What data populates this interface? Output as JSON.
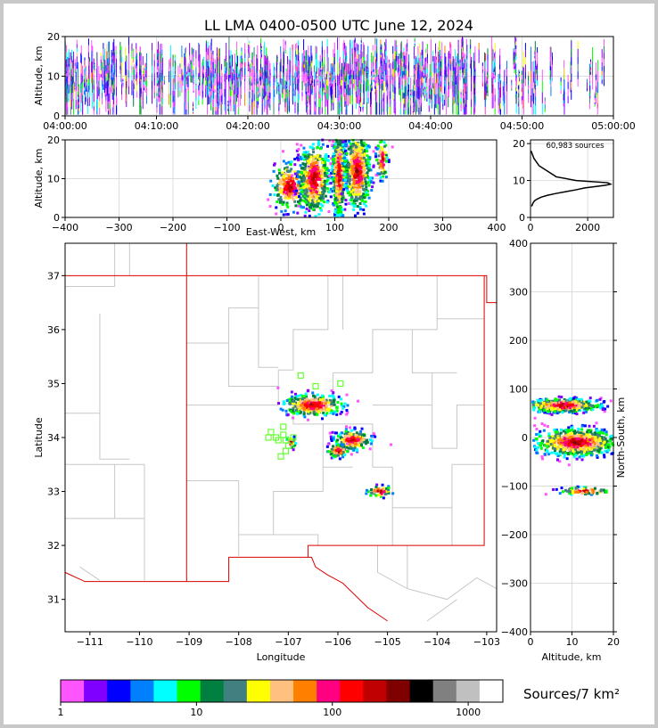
{
  "title": "LL LMA 0400-0500 UTC June 12, 2024",
  "colors": {
    "colorbar": [
      "#ff55ff",
      "#8000ff",
      "#0000ff",
      "#0080ff",
      "#00ffff",
      "#00ff00",
      "#008040",
      "#408080",
      "#ffff00",
      "#ffc080",
      "#ff8000",
      "#ff0080",
      "#ff0000",
      "#c00000",
      "#800000",
      "#000000",
      "#808080",
      "#c0c0c0",
      "#ffffff"
    ],
    "map_state_lines": "#dd0000",
    "map_county_lines": "#c8c8c8",
    "station_marker": "#66ff33",
    "grid": "#dddddd"
  },
  "chart_data": [
    {
      "type": "scatter",
      "name": "altitude-vs-time",
      "xlabel": "",
      "ylabel": "Altitude, km",
      "xlim": [
        "04:00:00",
        "05:00:00"
      ],
      "ylim": [
        0,
        20
      ],
      "xticks": [
        "04:00:00",
        "04:10:00",
        "04:20:00",
        "04:30:00",
        "04:40:00",
        "04:50:00",
        "05:00:00"
      ],
      "yticks": [
        0,
        10,
        20
      ],
      "activity_clusters_minutes": [
        {
          "start": 0,
          "end": 6,
          "density": 0.9
        },
        {
          "start": 6,
          "end": 14,
          "density": 0.6
        },
        {
          "start": 14,
          "end": 26,
          "density": 0.85
        },
        {
          "start": 26,
          "end": 44,
          "density": 1.0
        },
        {
          "start": 44,
          "end": 53,
          "density": 0.45
        },
        {
          "start": 53,
          "end": 59,
          "density": 0.25
        }
      ],
      "altitude_center_km": 9,
      "altitude_spread_km": 4
    },
    {
      "type": "heatmap",
      "name": "altitude-vs-east-west",
      "xlabel": "East-West, km",
      "ylabel": "Altitude, km",
      "xlim": [
        -400,
        400
      ],
      "ylim": [
        0,
        20
      ],
      "xticks": [
        -400,
        -300,
        -200,
        -100,
        0,
        100,
        200,
        300,
        400
      ],
      "yticks": [
        0,
        10,
        20
      ],
      "blobs": [
        {
          "x": 18,
          "xspread": 18,
          "alt": 8,
          "altspread": 3,
          "count": 260
        },
        {
          "x": 62,
          "xspread": 14,
          "alt": 10,
          "altspread": 4.5,
          "count": 520
        },
        {
          "x": 108,
          "xspread": 6,
          "alt": 11,
          "altspread": 5.5,
          "count": 480
        },
        {
          "x": 142,
          "xspread": 12,
          "alt": 12,
          "altspread": 5,
          "count": 560
        },
        {
          "x": 188,
          "xspread": 5,
          "alt": 15,
          "altspread": 2.5,
          "count": 90
        }
      ]
    },
    {
      "type": "line",
      "name": "altitude-histogram",
      "annotation": "60,983 sources",
      "xlim": [
        0,
        2900
      ],
      "ylim": [
        0,
        21
      ],
      "xticks": [
        0,
        2000
      ],
      "yticks": [
        0,
        10,
        20
      ],
      "x": [
        40,
        80,
        140,
        240,
        380,
        600,
        900,
        1250,
        1600,
        1900,
        2300,
        2600,
        2800,
        2700,
        1600,
        900,
        700,
        500,
        300,
        120,
        20
      ],
      "y": [
        3,
        3.8,
        4.5,
        5,
        5.5,
        6,
        6.5,
        7,
        7.5,
        8,
        8.4,
        8.7,
        9,
        9.4,
        10,
        11,
        12,
        13,
        14,
        16,
        18
      ]
    },
    {
      "type": "heatmap",
      "name": "plan-view-map",
      "xlabel": "Longitude",
      "ylabel": "Latitude",
      "xlim": [
        -111.5,
        -102.8
      ],
      "ylim": [
        30.4,
        37.6
      ],
      "xticks": [
        -111,
        -110,
        -109,
        -108,
        -107,
        -106,
        -105,
        -104,
        -103
      ],
      "yticks": [
        31,
        32,
        33,
        34,
        35,
        36,
        37
      ],
      "blobs": [
        {
          "lon": -106.5,
          "lat": 34.6,
          "lonspread": 0.3,
          "latspread": 0.1,
          "count": 320
        },
        {
          "lon": -105.7,
          "lat": 33.95,
          "lonspread": 0.18,
          "latspread": 0.09,
          "count": 230
        },
        {
          "lon": -106.0,
          "lat": 33.75,
          "lonspread": 0.1,
          "latspread": 0.06,
          "count": 90
        },
        {
          "lon": -106.95,
          "lat": 33.9,
          "lonspread": 0.05,
          "latspread": 0.06,
          "count": 30
        },
        {
          "lon": -105.15,
          "lat": 33.0,
          "lonspread": 0.13,
          "latspread": 0.05,
          "count": 50
        }
      ],
      "stations": [
        [
          -106.75,
          35.15
        ],
        [
          -106.45,
          34.95
        ],
        [
          -105.95,
          35.0
        ],
        [
          -107.35,
          34.1
        ],
        [
          -107.1,
          34.2
        ],
        [
          -107.1,
          34.05
        ],
        [
          -107.05,
          33.95
        ],
        [
          -107.0,
          33.85
        ],
        [
          -107.2,
          33.95
        ],
        [
          -107.4,
          34.0
        ],
        [
          -107.25,
          34.0
        ],
        [
          -106.9,
          34.0
        ],
        [
          -107.05,
          33.75
        ],
        [
          -107.15,
          33.65
        ]
      ]
    },
    {
      "type": "heatmap",
      "name": "north-south-vs-altitude",
      "xlabel": "Altitude, km",
      "ylabel": "North-South, km",
      "xlim": [
        0,
        20
      ],
      "ylim": [
        -400,
        400
      ],
      "xticks": [
        0,
        10,
        20
      ],
      "yticks": [
        -400,
        -300,
        -200,
        -100,
        0,
        100,
        200,
        300,
        400
      ],
      "blobs": [
        {
          "alt": 8,
          "altspread": 4.5,
          "ns": 66,
          "nsspread": 7,
          "count": 480
        },
        {
          "alt": 11,
          "altspread": 5,
          "ns": -10,
          "nsspread": 14,
          "count": 720
        },
        {
          "alt": 13,
          "altspread": 3,
          "ns": -110,
          "nsspread": 4,
          "count": 90
        }
      ]
    }
  ],
  "colorbar": {
    "label": "Sources/7 km²",
    "tick_labels": [
      "1",
      "10",
      "100",
      "1000"
    ],
    "tick_values": [
      1,
      10,
      100,
      1000
    ],
    "range": [
      1,
      1800
    ]
  }
}
